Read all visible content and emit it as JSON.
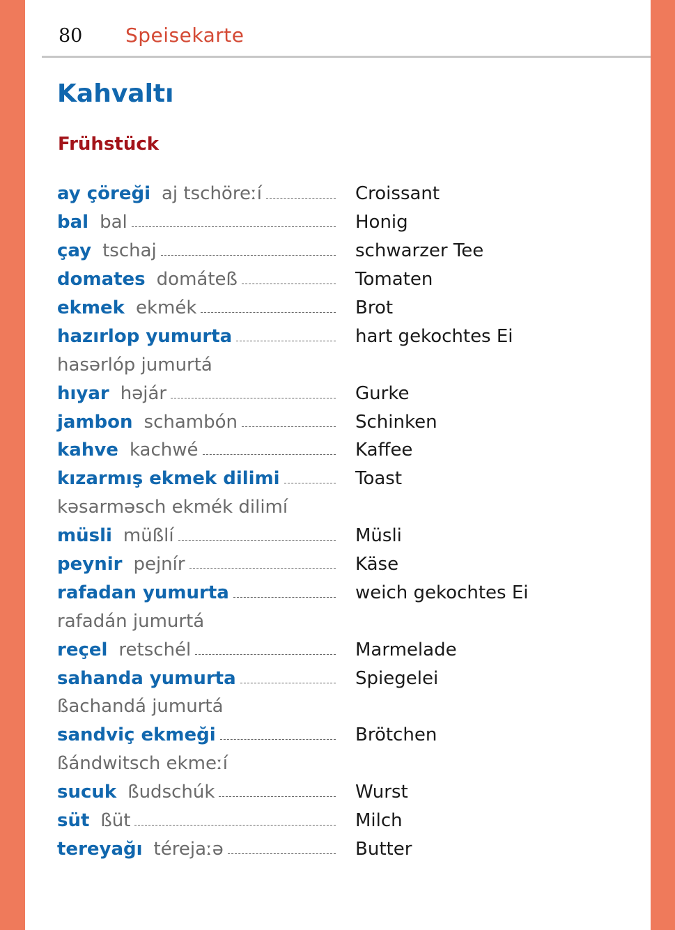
{
  "header": {
    "page_number": "80",
    "section": "Speisekarte"
  },
  "title": "Kahvaltı",
  "subtitle": "Frühstück",
  "colors": {
    "accent_bar": "#ef7a5b",
    "turkish": "#1167ae",
    "subtitle": "#a3141a",
    "section": "#d44a35"
  },
  "entries": [
    {
      "turkish": "ay çöreği",
      "pronunciation": "aj tschöreːí",
      "german": "Croissant",
      "pron_newline": false
    },
    {
      "turkish": "bal",
      "pronunciation": "bal",
      "german": "Honig",
      "pron_newline": false
    },
    {
      "turkish": "çay",
      "pronunciation": "tschaj",
      "german": "schwarzer Tee",
      "pron_newline": false
    },
    {
      "turkish": "domates",
      "pronunciation": "domáteß",
      "german": "Tomaten",
      "pron_newline": false
    },
    {
      "turkish": "ekmek",
      "pronunciation": "ekmék",
      "german": "Brot",
      "pron_newline": false
    },
    {
      "turkish": "hazırlop yumurta",
      "pronunciation": "hasərlóp jumurtá",
      "german": "hart gekochtes Ei",
      "pron_newline": true
    },
    {
      "turkish": "hıyar",
      "pronunciation": "həjár",
      "german": "Gurke",
      "pron_newline": false
    },
    {
      "turkish": "jambon",
      "pronunciation": "schambón",
      "german": "Schinken",
      "pron_newline": false
    },
    {
      "turkish": "kahve",
      "pronunciation": "kachwé",
      "german": "Kaffee",
      "pron_newline": false
    },
    {
      "turkish": "kızarmış ekmek dilimi",
      "pronunciation": "kəsarməsch ekmék dilimí",
      "german": "Toast",
      "pron_newline": true
    },
    {
      "turkish": "müsli",
      "pronunciation": "müßlí",
      "german": "Müsli",
      "pron_newline": false
    },
    {
      "turkish": "peynir",
      "pronunciation": "pejnír",
      "german": "Käse",
      "pron_newline": false
    },
    {
      "turkish": "rafadan yumurta",
      "pronunciation": "rafadán jumurtá",
      "german": "weich gekochtes Ei",
      "pron_newline": true
    },
    {
      "turkish": "reçel",
      "pronunciation": "retschél",
      "german": "Marmelade",
      "pron_newline": false
    },
    {
      "turkish": "sahanda yumurta",
      "pronunciation": "ßachandá jumurtá",
      "german": "Spiegelei",
      "pron_newline": true
    },
    {
      "turkish": "sandviç ekmeği",
      "pronunciation": "ßándwitsch ekmeːí",
      "german": "Brötchen",
      "pron_newline": true
    },
    {
      "turkish": "sucuk",
      "pronunciation": "ßudschúk",
      "german": "Wurst",
      "pron_newline": false
    },
    {
      "turkish": "süt",
      "pronunciation": "ßüt",
      "german": "Milch",
      "pron_newline": false
    },
    {
      "turkish": "tereyağı",
      "pronunciation": "térejaːə",
      "german": "Butter",
      "pron_newline": false
    }
  ]
}
